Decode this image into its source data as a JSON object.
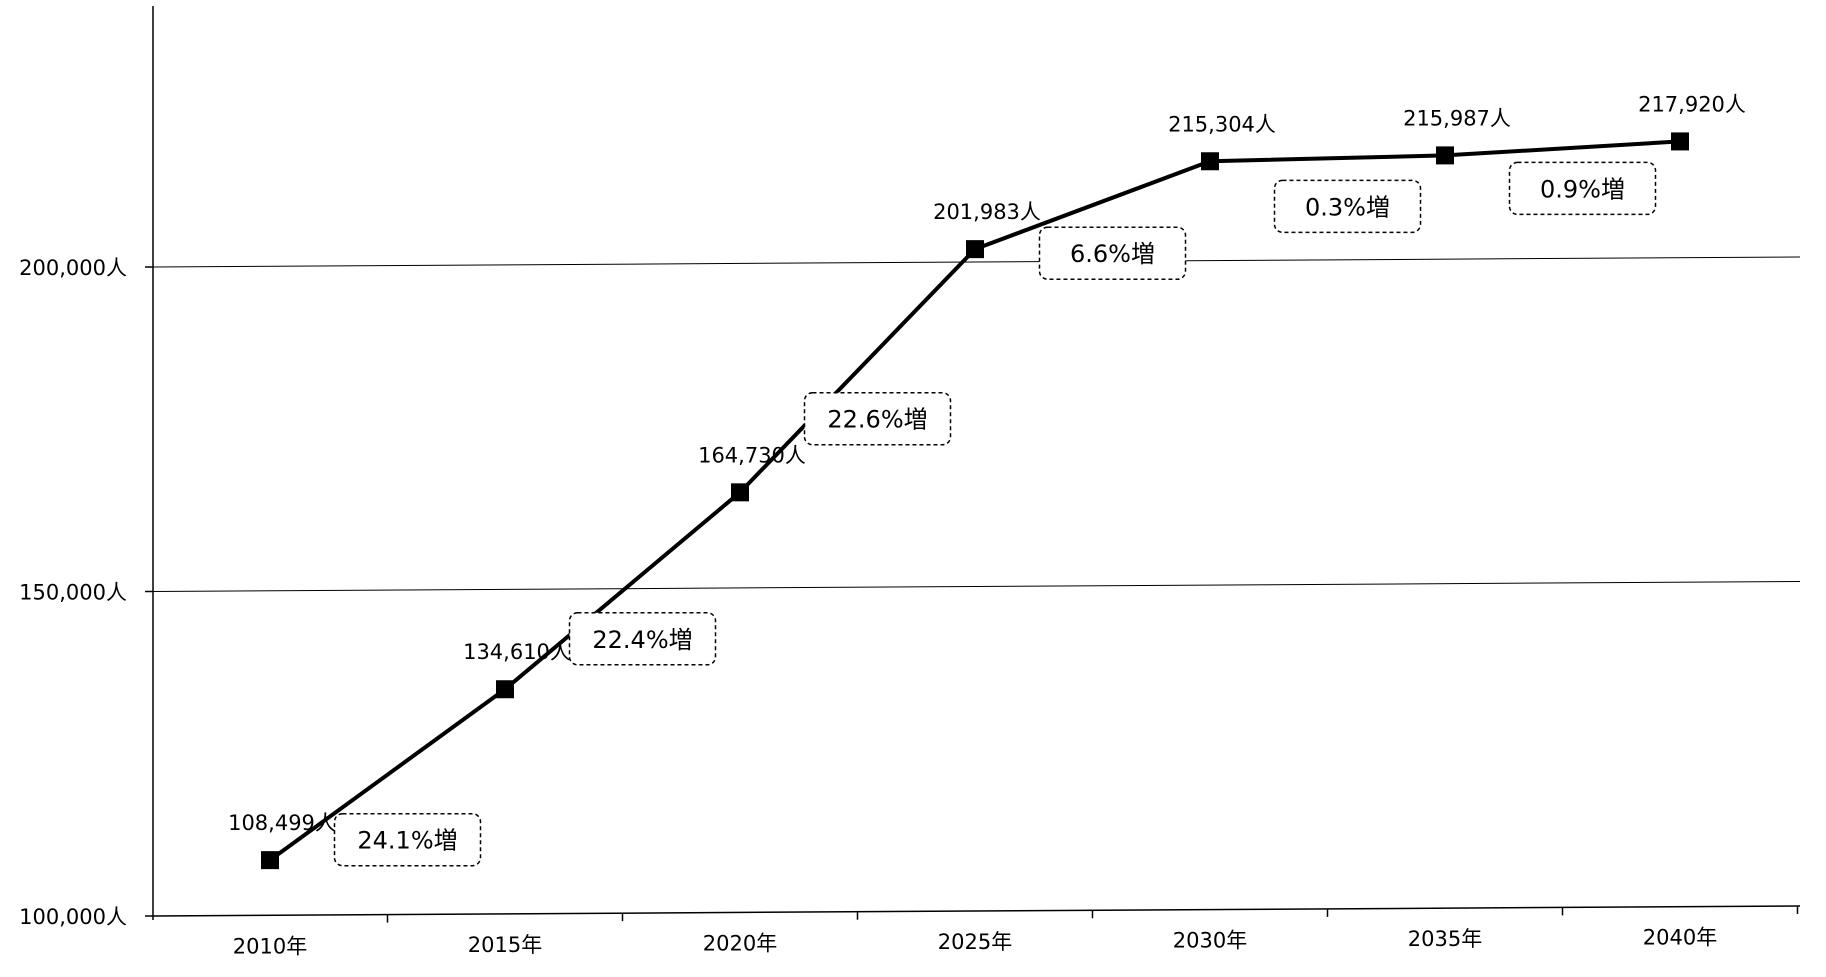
{
  "chart_data": {
    "type": "line",
    "categories": [
      "2010年",
      "2015年",
      "2020年",
      "2025年",
      "2030年",
      "2035年",
      "2040年"
    ],
    "values": [
      108499,
      134610,
      164730,
      201983,
      215304,
      215987,
      217920
    ],
    "data_labels": [
      "108,499人",
      "134,610人",
      "164,730人",
      "201,983人",
      "215,304人",
      "215,987人",
      "217,920人"
    ],
    "growth_labels": [
      "24.1%増",
      "22.4%増",
      "22.6%増",
      "6.6%増",
      "0.3%増",
      "0.9%増"
    ],
    "y_ticks": [
      {
        "value": 100000,
        "label": "100,000人"
      },
      {
        "value": 150000,
        "label": "150,000人"
      },
      {
        "value": 200000,
        "label": "200,000人"
      }
    ],
    "ylim": [
      100000,
      240000
    ],
    "grid": true,
    "title": "",
    "xlabel": "",
    "ylabel": "",
    "colors": {
      "line": "#000000",
      "marker": "#000000"
    }
  }
}
